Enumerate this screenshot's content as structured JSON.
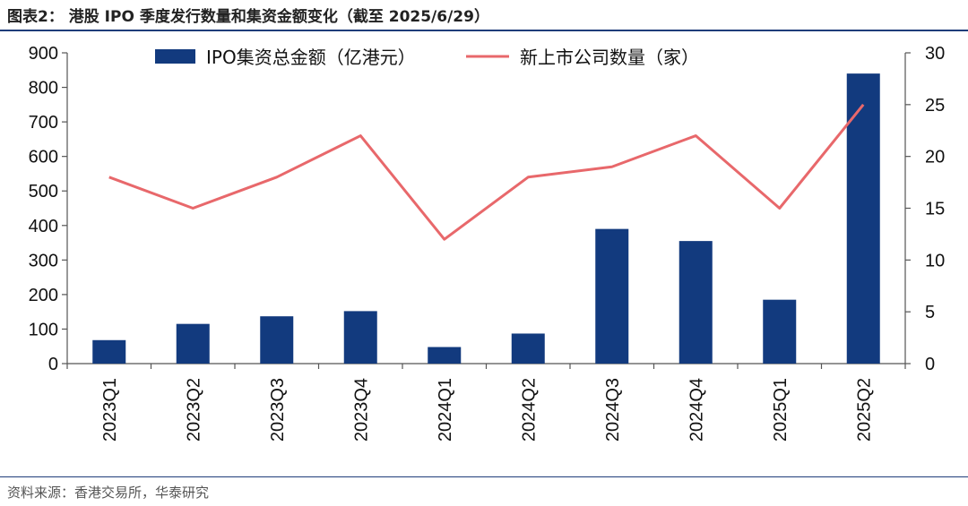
{
  "header": {
    "title": "图表2：  港股 IPO 季度发行数量和集资金额变化（截至 2025/6/29）"
  },
  "footer": {
    "source": "资料来源：香港交易所，华泰研究"
  },
  "colors": {
    "bar": "#123a7e",
    "line": "#e8686b",
    "rule": "#1f3d7a"
  },
  "chart_data": {
    "type": "bar",
    "categories": [
      "2023Q1",
      "2023Q2",
      "2023Q3",
      "2023Q4",
      "2024Q1",
      "2024Q2",
      "2024Q3",
      "2024Q4",
      "2025Q1",
      "2025Q2"
    ],
    "series": [
      {
        "name": "IPO集资总金额（亿港元）",
        "type": "bar",
        "axis": "left",
        "values": [
          68,
          115,
          137,
          152,
          48,
          87,
          390,
          355,
          185,
          840
        ]
      },
      {
        "name": "新上市公司数量（家）",
        "type": "line",
        "axis": "right",
        "values": [
          18,
          15,
          18,
          22,
          12,
          18,
          19,
          22,
          15,
          25
        ]
      }
    ],
    "left_axis": {
      "ylim": [
        0,
        900
      ],
      "ticks": [
        "0",
        "100",
        "200",
        "300",
        "400",
        "500",
        "600",
        "700",
        "800",
        "900"
      ]
    },
    "right_axis": {
      "ylim": [
        0,
        30
      ],
      "ticks": [
        "0",
        "5",
        "10",
        "15",
        "20",
        "25",
        "30"
      ]
    },
    "legend_position": "top-center",
    "grid": false
  }
}
